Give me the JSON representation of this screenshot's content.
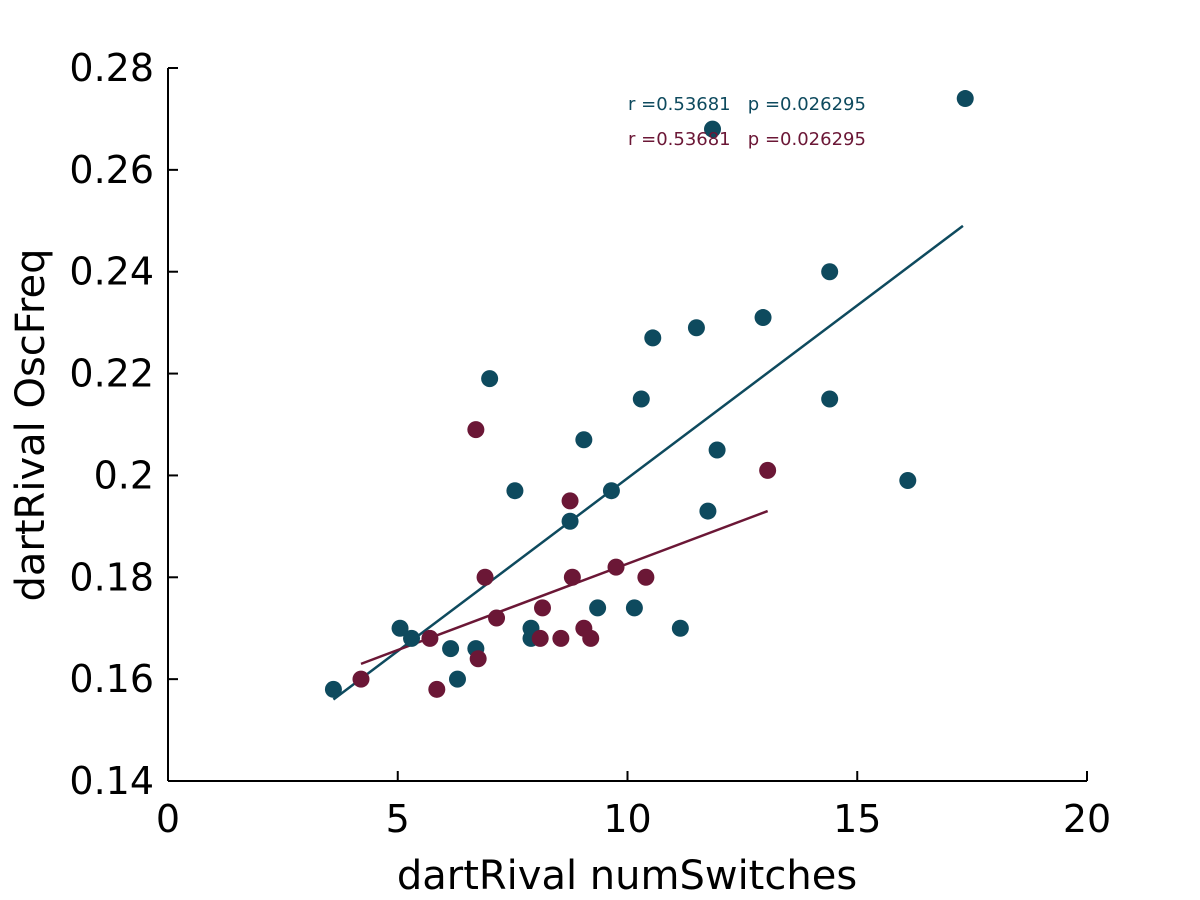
{
  "chart_data": {
    "type": "scatter",
    "title": "",
    "xlabel": "dartRival numSwitches",
    "ylabel": "dartRival OscFreq",
    "xlim": [
      0,
      20
    ],
    "ylim": [
      0.14,
      0.28
    ],
    "xticks": [
      "0",
      "5",
      "10",
      "15",
      "20"
    ],
    "yticks": [
      "0.14",
      "0.16",
      "0.18",
      "0.2",
      "0.22",
      "0.24",
      "0.26",
      "0.28"
    ],
    "grid": false,
    "series": [
      {
        "color": "#0e4a5e",
        "points": [
          [
            3.6,
            0.158
          ],
          [
            5.05,
            0.17
          ],
          [
            5.3,
            0.168
          ],
          [
            6.15,
            0.166
          ],
          [
            6.3,
            0.16
          ],
          [
            6.7,
            0.166
          ],
          [
            7.0,
            0.219
          ],
          [
            7.55,
            0.197
          ],
          [
            7.9,
            0.17
          ],
          [
            7.9,
            0.168
          ],
          [
            8.75,
            0.191
          ],
          [
            9.05,
            0.207
          ],
          [
            9.35,
            0.174
          ],
          [
            9.65,
            0.197
          ],
          [
            10.15,
            0.174
          ],
          [
            10.3,
            0.215
          ],
          [
            10.55,
            0.227
          ],
          [
            11.15,
            0.17
          ],
          [
            11.5,
            0.229
          ],
          [
            11.75,
            0.193
          ],
          [
            11.85,
            0.268
          ],
          [
            11.95,
            0.205
          ],
          [
            12.95,
            0.231
          ],
          [
            14.4,
            0.24
          ],
          [
            14.4,
            0.215
          ],
          [
            16.1,
            0.199
          ],
          [
            17.35,
            0.274
          ]
        ],
        "fit": {
          "x": [
            3.6,
            17.3
          ],
          "y": [
            0.156,
            0.249
          ]
        }
      },
      {
        "color": "#6b1736",
        "points": [
          [
            4.2,
            0.16
          ],
          [
            5.7,
            0.168
          ],
          [
            5.85,
            0.158
          ],
          [
            6.7,
            0.209
          ],
          [
            6.75,
            0.164
          ],
          [
            6.9,
            0.18
          ],
          [
            7.15,
            0.172
          ],
          [
            8.1,
            0.168
          ],
          [
            8.15,
            0.174
          ],
          [
            8.55,
            0.168
          ],
          [
            8.75,
            0.195
          ],
          [
            8.8,
            0.18
          ],
          [
            9.05,
            0.17
          ],
          [
            9.2,
            0.168
          ],
          [
            9.75,
            0.182
          ],
          [
            10.4,
            0.18
          ],
          [
            13.05,
            0.201
          ]
        ],
        "fit": {
          "x": [
            4.2,
            13.05
          ],
          "y": [
            0.163,
            0.193
          ]
        }
      }
    ],
    "annotations": [
      {
        "text": "r =0.53681   p =0.026295",
        "color": "#0e4a5e"
      },
      {
        "text": "r =0.53681   p =0.026295",
        "color": "#6b1736"
      }
    ]
  }
}
